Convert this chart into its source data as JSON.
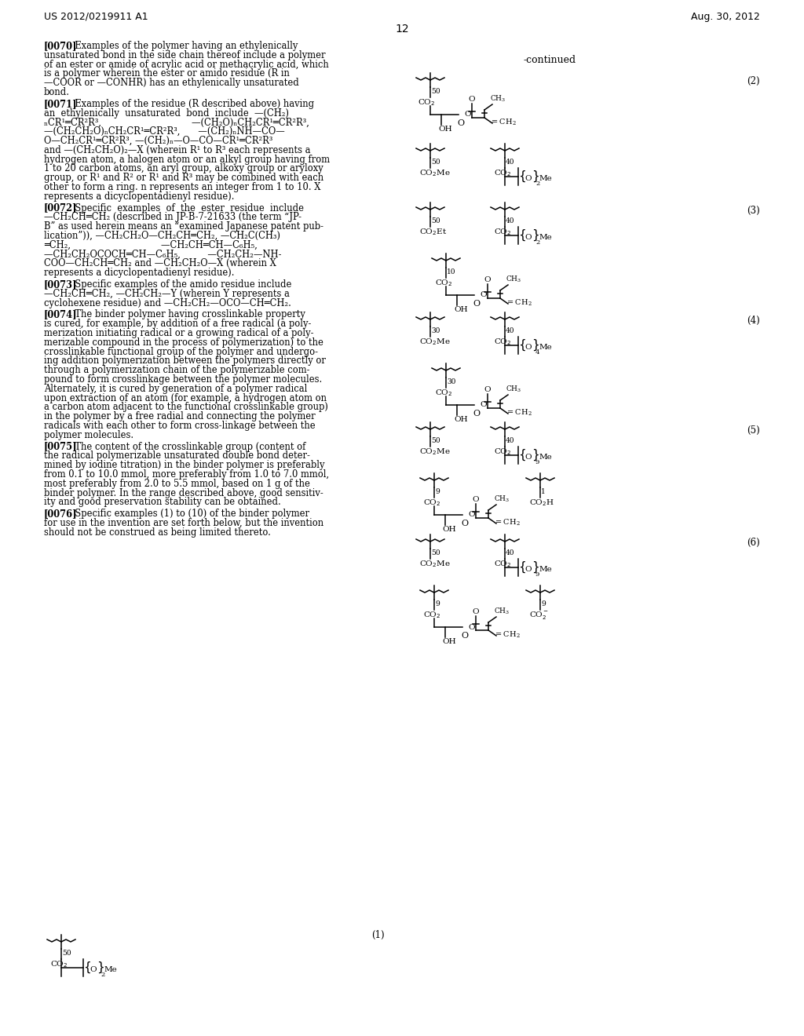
{
  "bg": "#ffffff",
  "header_left": "US 2012/0219911 A1",
  "header_right": "Aug. 30, 2012",
  "page_num": "12",
  "continued": "-continued",
  "label2": "(2)",
  "label3": "(3)",
  "label4": "(4)",
  "label5": "(5)",
  "label6": "(6)",
  "label1": "(1)"
}
